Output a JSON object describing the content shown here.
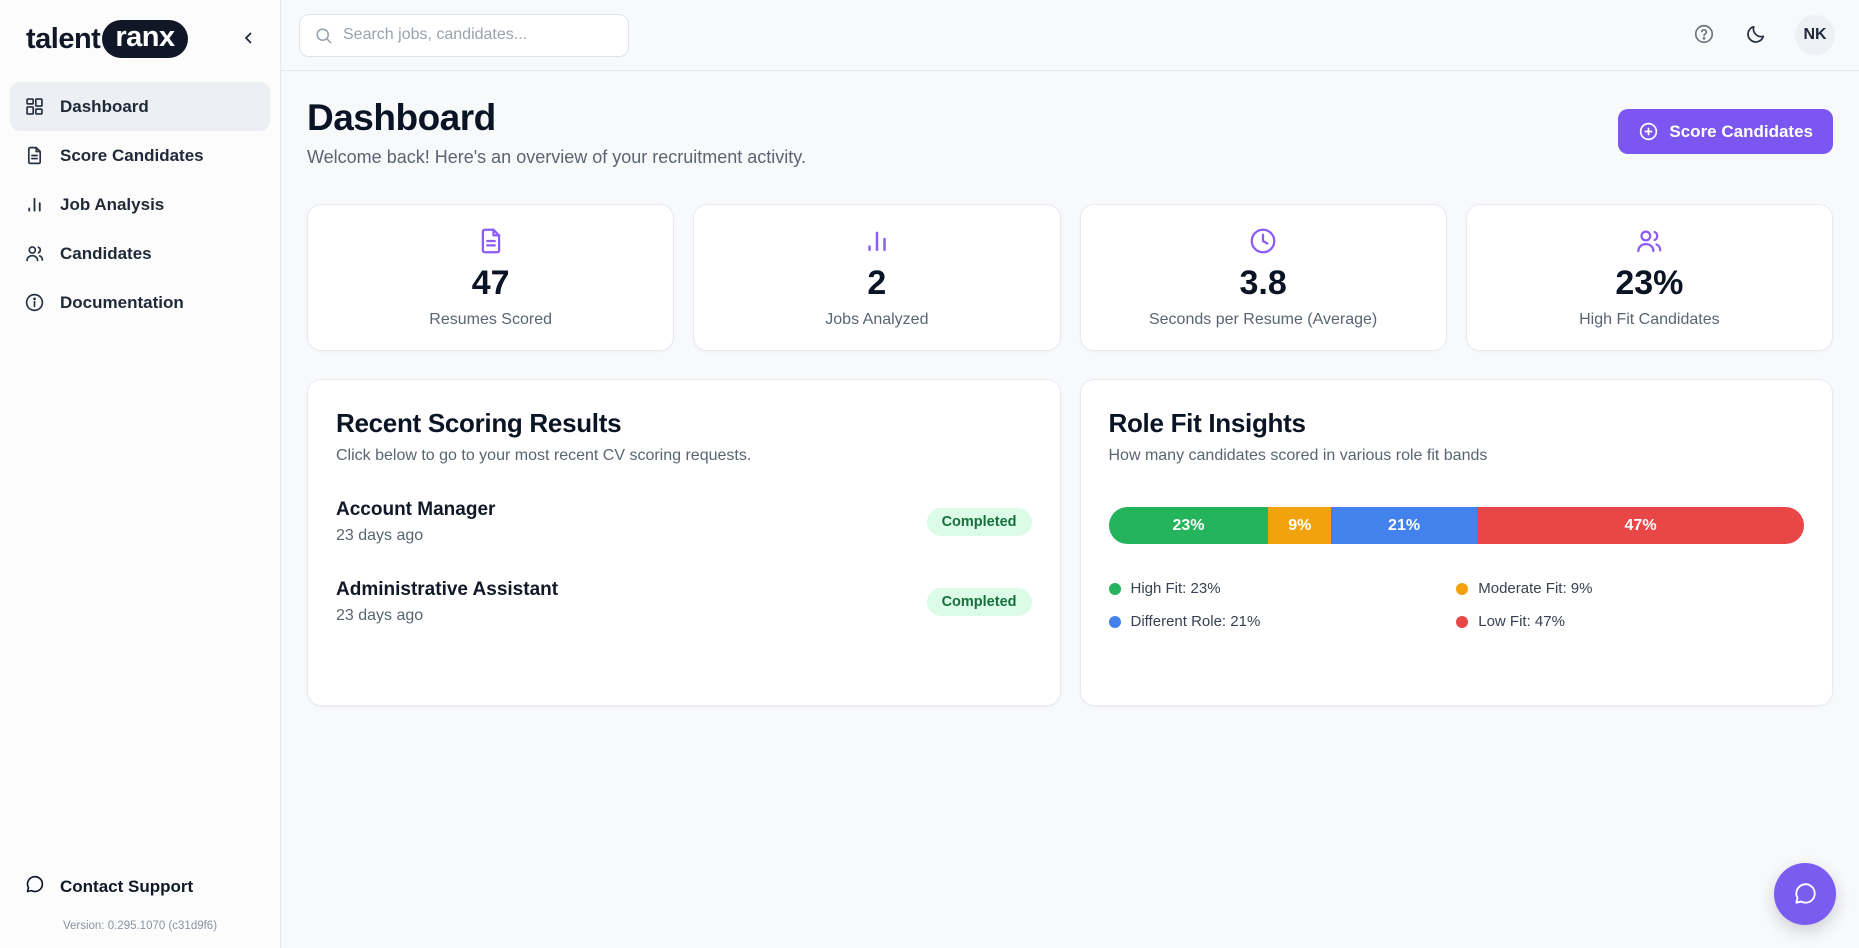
{
  "brand": {
    "name_left": "talent",
    "name_right": "ranx"
  },
  "sidebar": {
    "items": [
      {
        "label": "Dashboard",
        "icon": "grid-icon",
        "active": true
      },
      {
        "label": "Score Candidates",
        "icon": "document-icon",
        "active": false
      },
      {
        "label": "Job Analysis",
        "icon": "bar-chart-icon",
        "active": false
      },
      {
        "label": "Candidates",
        "icon": "users-icon",
        "active": false
      },
      {
        "label": "Documentation",
        "icon": "info-icon",
        "active": false
      }
    ],
    "footer": {
      "support_label": "Contact Support",
      "version": "Version: 0.295.1070 (c31d9f6)"
    }
  },
  "topbar": {
    "search_placeholder": "Search jobs, candidates...",
    "avatar_initials": "NK"
  },
  "page": {
    "title": "Dashboard",
    "subtitle": "Welcome back! Here's an overview of your recruitment activity.",
    "primary_action": "Score Candidates"
  },
  "stats": [
    {
      "value": "47",
      "label": "Resumes Scored",
      "icon": "document-icon"
    },
    {
      "value": "2",
      "label": "Jobs Analyzed",
      "icon": "bar-chart-icon"
    },
    {
      "value": "3.8",
      "label": "Seconds per Resume (Average)",
      "icon": "clock-icon"
    },
    {
      "value": "23%",
      "label": "High Fit Candidates",
      "icon": "users-icon"
    }
  ],
  "recent": {
    "title": "Recent Scoring Results",
    "subtitle": "Click below to go to your most recent CV scoring requests.",
    "items": [
      {
        "title": "Account Manager",
        "time": "23 days ago",
        "status": "Completed"
      },
      {
        "title": "Administrative Assistant",
        "time": "23 days ago",
        "status": "Completed"
      }
    ]
  },
  "insights": {
    "title": "Role Fit Insights",
    "subtitle": "How many candidates scored in various role fit bands",
    "legend": [
      {
        "label": "High Fit: 23%"
      },
      {
        "label": "Moderate Fit: 9%"
      },
      {
        "label": "Different Role: 21%"
      },
      {
        "label": "Low Fit: 47%"
      }
    ]
  },
  "chart_data": {
    "type": "bar",
    "stacked": true,
    "orientation": "horizontal",
    "title": "Role Fit Insights",
    "categories": [
      "High Fit",
      "Moderate Fit",
      "Different Role",
      "Low Fit"
    ],
    "values": [
      23,
      9,
      21,
      47
    ],
    "unit": "%",
    "segment_labels": [
      "23%",
      "9%",
      "21%",
      "47%"
    ],
    "colors": [
      "#23b45c",
      "#f2a20d",
      "#4382ec",
      "#e94747"
    ],
    "legend_position": "below"
  },
  "colors": {
    "accent_purple": "#7c56f0",
    "icon_purple": "#8b5cf6",
    "badge_bg": "#dcfce7",
    "badge_text": "#166f3d",
    "green": "#23b45c",
    "orange": "#f2a20d",
    "blue": "#4382ec",
    "red": "#e94747"
  },
  "status_badge_label": "Completed"
}
